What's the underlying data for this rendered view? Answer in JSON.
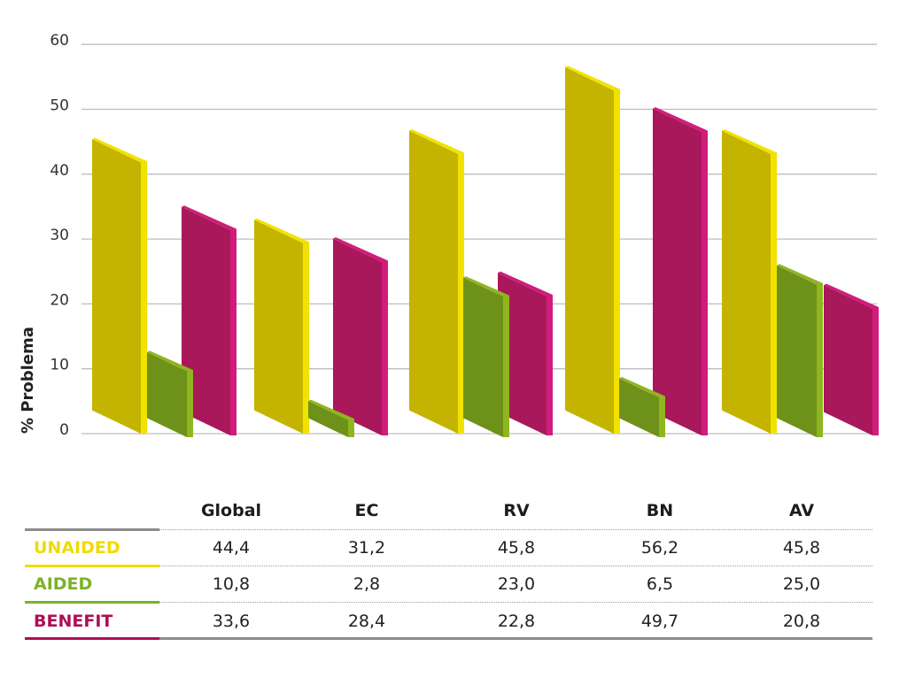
{
  "chart_data": {
    "type": "bar",
    "title": "",
    "xlabel": "",
    "ylabel": "% Problema",
    "ylim": [
      0,
      60
    ],
    "yticks": [
      "0",
      "10",
      "20",
      "30",
      "40",
      "50",
      "60"
    ],
    "grid": true,
    "style": "3d-slanted bars",
    "categories": [
      "Global",
      "EC",
      "RV",
      "BN",
      "AV"
    ],
    "series": [
      {
        "name": "UNAIDED",
        "color": "#c4b400",
        "edge_color": "#f2e200",
        "label_color": "#efdb00",
        "values": [
          44.4,
          31.2,
          45.8,
          56.2,
          45.8
        ]
      },
      {
        "name": "AIDED",
        "color": "#6e9119",
        "edge_color": "#8fb51f",
        "label_color": "#7bb22a",
        "values": [
          10.8,
          2.8,
          23.0,
          6.5,
          25.0
        ]
      },
      {
        "name": "BENEFIT",
        "color": "#a8185a",
        "edge_color": "#d11c7c",
        "label_color": "#ad0f55",
        "values": [
          33.6,
          28.4,
          22.8,
          49.7,
          20.8
        ]
      }
    ]
  },
  "table": {
    "headers": [
      "Global",
      "EC",
      "RV",
      "BN",
      "AV"
    ],
    "rows": [
      {
        "label": "UNAIDED",
        "cells": [
          "44,4",
          "31,2",
          "45,8",
          "56,2",
          "45,8"
        ]
      },
      {
        "label": "AIDED",
        "cells": [
          "10,8",
          "2,8",
          "23,0",
          "6,5",
          "25,0"
        ]
      },
      {
        "label": "BENEFIT",
        "cells": [
          "33,6",
          "28,4",
          "22,8",
          "49,7",
          "20,8"
        ]
      }
    ]
  }
}
